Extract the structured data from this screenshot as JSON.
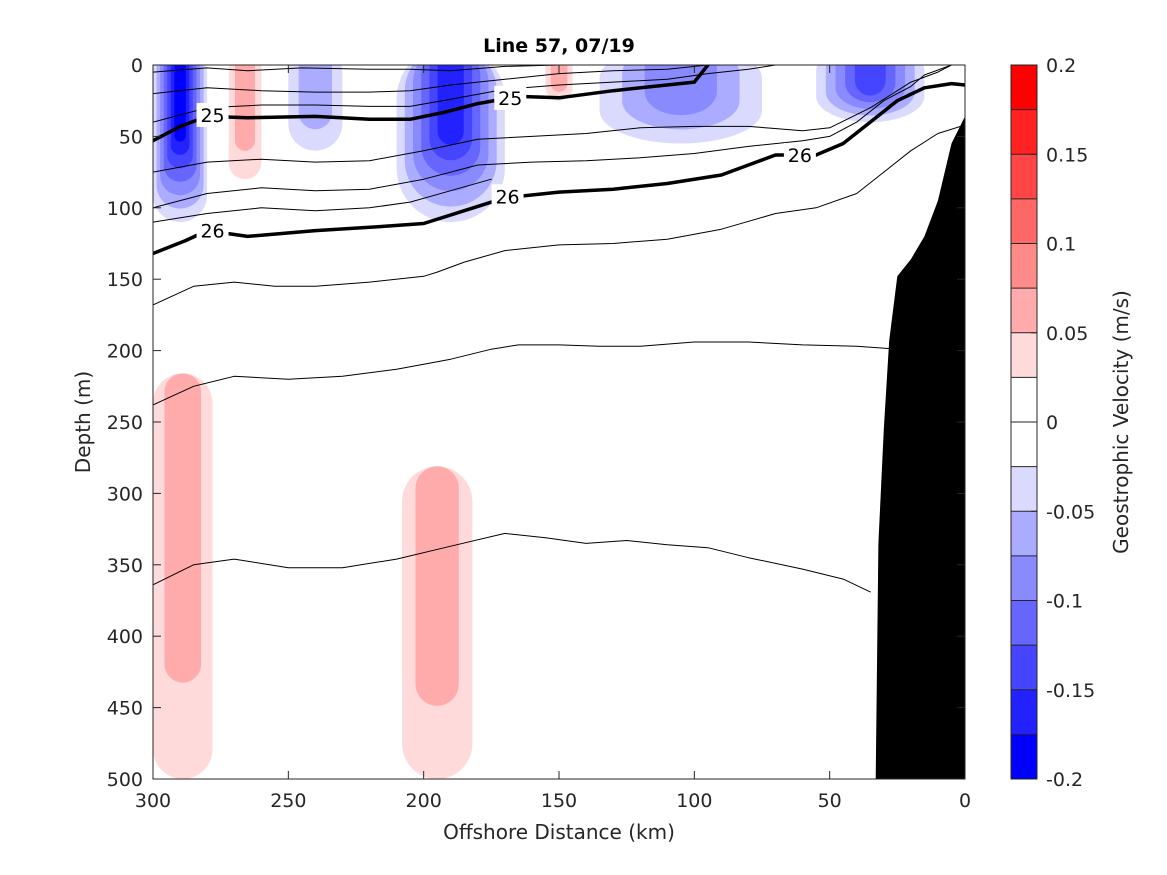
{
  "chart_data": {
    "type": "contour",
    "title": "Line 57, 07/19",
    "xlabel": "Offshore Distance (km)",
    "ylabel": "Depth (m)",
    "xlim": [
      300,
      0
    ],
    "ylim": [
      0,
      500
    ],
    "x_reversed": true,
    "y_reversed": true,
    "xticks": [
      "300",
      "250",
      "200",
      "150",
      "100",
      "50",
      "0"
    ],
    "yticks": [
      "0",
      "50",
      "100",
      "150",
      "200",
      "250",
      "300",
      "350",
      "400",
      "450",
      "500"
    ],
    "colorbar": {
      "label": "Geostrophic Velocity (m/s)",
      "range": [
        -0.2,
        0.2
      ],
      "ticks": [
        "0.2",
        "0.15",
        "0.1",
        "0.05",
        "0",
        "-0.05",
        "-0.1",
        "-0.15",
        "-0.2"
      ],
      "tick_values": [
        0.2,
        0.15,
        0.1,
        0.05,
        0,
        -0.05,
        -0.1,
        -0.15,
        -0.2
      ],
      "levels": 16,
      "colors_top_to_bottom": [
        "#ff0000",
        "#ff2222",
        "#ff4545",
        "#ff6666",
        "#ff8a8a",
        "#ffabab",
        "#ffdada",
        "#ffffff",
        "#ffffff",
        "#dadaff",
        "#ababff",
        "#8a8aff",
        "#6666ff",
        "#4545ff",
        "#2222ff",
        "#0000ff"
      ]
    },
    "velocity_regions": [
      {
        "name": "nearshore-surface-negative",
        "x_range": [
          300,
          280
        ],
        "depth_range": [
          0,
          110
        ],
        "peak": -0.19
      },
      {
        "name": "surface-positive-265",
        "x_range": [
          272,
          260
        ],
        "depth_range": [
          0,
          80
        ],
        "peak": 0.05
      },
      {
        "name": "negative-240",
        "x_range": [
          250,
          230
        ],
        "depth_range": [
          0,
          60
        ],
        "peak": -0.05
      },
      {
        "name": "negative-195",
        "x_range": [
          210,
          170
        ],
        "depth_range": [
          0,
          110
        ],
        "peak": -0.16
      },
      {
        "name": "surface-positive-150",
        "x_range": [
          155,
          145
        ],
        "depth_range": [
          0,
          25
        ],
        "peak": 0.05
      },
      {
        "name": "negative-120",
        "x_range": [
          135,
          75
        ],
        "depth_range": [
          0,
          55
        ],
        "peak": -0.08
      },
      {
        "name": "negative-40",
        "x_range": [
          55,
          15
        ],
        "depth_range": [
          0,
          40
        ],
        "peak": -0.14
      },
      {
        "name": "deep-positive-300",
        "x_range": [
          300,
          278
        ],
        "depth_range": [
          230,
          500
        ],
        "peak": 0.07
      },
      {
        "name": "deep-positive-195",
        "x_range": [
          208,
          182
        ],
        "depth_range": [
          295,
          500
        ],
        "peak": 0.05
      }
    ],
    "isopycnal_labels": [
      {
        "text": "25",
        "x": 278,
        "depth": 35
      },
      {
        "text": "25",
        "x": 168,
        "depth": 23
      },
      {
        "text": "26",
        "x": 278,
        "depth": 116
      },
      {
        "text": "26",
        "x": 169,
        "depth": 92
      },
      {
        "text": "26",
        "x": 61,
        "depth": 63
      }
    ],
    "isopycnals": [
      {
        "bold": true,
        "label": "25",
        "points": [
          [
            300,
            53
          ],
          [
            290,
            43
          ],
          [
            280,
            36
          ],
          [
            265,
            37
          ],
          [
            240,
            36
          ],
          [
            220,
            38
          ],
          [
            205,
            38
          ],
          [
            192,
            33
          ],
          [
            180,
            27
          ],
          [
            165,
            22
          ],
          [
            150,
            23
          ],
          [
            130,
            18
          ],
          [
            115,
            15
          ],
          [
            100,
            12
          ],
          [
            95,
            0
          ]
        ]
      },
      {
        "bold": true,
        "label": "26",
        "points": [
          [
            300,
            132
          ],
          [
            288,
            123
          ],
          [
            280,
            116
          ],
          [
            265,
            120
          ],
          [
            240,
            116
          ],
          [
            215,
            113
          ],
          [
            200,
            111
          ],
          [
            185,
            102
          ],
          [
            170,
            93
          ],
          [
            150,
            89
          ],
          [
            130,
            87
          ],
          [
            110,
            83
          ],
          [
            90,
            77
          ],
          [
            70,
            63
          ],
          [
            55,
            63
          ],
          [
            45,
            55
          ],
          [
            35,
            40
          ],
          [
            25,
            25
          ],
          [
            15,
            16
          ],
          [
            5,
            13
          ],
          [
            0,
            14
          ]
        ]
      },
      {
        "bold": false,
        "points": [
          [
            300,
            5
          ],
          [
            280,
            2
          ],
          [
            265,
            4
          ],
          [
            245,
            2
          ],
          [
            220,
            3
          ],
          [
            205,
            3
          ],
          [
            190,
            4
          ],
          [
            170,
            1
          ],
          [
            150,
            0
          ]
        ]
      },
      {
        "bold": false,
        "points": [
          [
            300,
            20
          ],
          [
            280,
            16
          ],
          [
            260,
            18
          ],
          [
            240,
            19
          ],
          [
            220,
            19
          ],
          [
            205,
            18
          ],
          [
            190,
            14
          ],
          [
            170,
            10
          ],
          [
            150,
            6
          ],
          [
            130,
            4
          ],
          [
            110,
            3
          ],
          [
            95,
            0
          ]
        ]
      },
      {
        "bold": false,
        "points": [
          [
            300,
            40
          ],
          [
            280,
            30
          ],
          [
            260,
            28
          ],
          [
            240,
            28
          ],
          [
            220,
            29
          ],
          [
            205,
            29
          ],
          [
            190,
            24
          ],
          [
            170,
            17
          ],
          [
            150,
            14
          ],
          [
            130,
            12
          ],
          [
            110,
            10
          ],
          [
            95,
            6
          ],
          [
            80,
            3
          ],
          [
            70,
            0
          ]
        ]
      },
      {
        "bold": false,
        "points": [
          [
            300,
            75
          ],
          [
            280,
            68
          ],
          [
            260,
            66
          ],
          [
            240,
            68
          ],
          [
            220,
            67
          ],
          [
            200,
            60
          ],
          [
            180,
            52
          ],
          [
            160,
            50
          ],
          [
            140,
            48
          ],
          [
            120,
            44
          ],
          [
            100,
            43
          ],
          [
            80,
            43
          ],
          [
            60,
            46
          ],
          [
            50,
            44
          ],
          [
            35,
            30
          ],
          [
            20,
            12
          ],
          [
            10,
            5
          ],
          [
            5,
            0
          ]
        ]
      },
      {
        "bold": false,
        "points": [
          [
            300,
            100
          ],
          [
            280,
            90
          ],
          [
            260,
            86
          ],
          [
            240,
            88
          ],
          [
            220,
            87
          ],
          [
            200,
            80
          ],
          [
            180,
            70
          ],
          [
            160,
            68
          ],
          [
            140,
            67
          ],
          [
            120,
            65
          ],
          [
            100,
            62
          ],
          [
            80,
            57
          ],
          [
            60,
            53
          ],
          [
            50,
            50
          ],
          [
            40,
            40
          ],
          [
            30,
            25
          ],
          [
            20,
            15
          ],
          [
            15,
            7
          ],
          [
            5,
            0
          ]
        ]
      },
      {
        "bold": false,
        "points": [
          [
            300,
            110
          ],
          [
            280,
            104
          ],
          [
            260,
            100
          ],
          [
            240,
            102
          ],
          [
            220,
            100
          ],
          [
            205,
            96
          ],
          [
            190,
            88
          ],
          [
            175,
            80
          ]
        ]
      },
      {
        "bold": false,
        "points": [
          [
            300,
            168
          ],
          [
            285,
            155
          ],
          [
            270,
            152
          ],
          [
            255,
            155
          ],
          [
            240,
            155
          ],
          [
            220,
            152
          ],
          [
            200,
            148
          ],
          [
            195,
            145
          ],
          [
            185,
            138
          ],
          [
            170,
            130
          ],
          [
            150,
            126
          ],
          [
            130,
            125
          ],
          [
            110,
            122
          ],
          [
            90,
            115
          ],
          [
            70,
            104
          ],
          [
            55,
            100
          ],
          [
            40,
            90
          ],
          [
            30,
            75
          ],
          [
            20,
            60
          ],
          [
            10,
            48
          ],
          [
            0,
            42
          ]
        ]
      },
      {
        "bold": false,
        "points": [
          [
            300,
            238
          ],
          [
            285,
            225
          ],
          [
            270,
            218
          ],
          [
            250,
            220
          ],
          [
            230,
            218
          ],
          [
            210,
            213
          ],
          [
            190,
            206
          ],
          [
            175,
            199
          ],
          [
            165,
            196
          ],
          [
            150,
            196
          ],
          [
            135,
            197
          ],
          [
            120,
            197
          ],
          [
            100,
            194
          ],
          [
            80,
            194
          ],
          [
            60,
            196
          ],
          [
            40,
            197
          ],
          [
            25,
            199
          ]
        ]
      },
      {
        "bold": false,
        "points": [
          [
            300,
            364
          ],
          [
            285,
            350
          ],
          [
            270,
            346
          ],
          [
            250,
            352
          ],
          [
            230,
            352
          ],
          [
            210,
            346
          ],
          [
            190,
            337
          ],
          [
            170,
            328
          ],
          [
            155,
            331
          ],
          [
            140,
            335
          ],
          [
            125,
            333
          ],
          [
            110,
            336
          ],
          [
            95,
            338
          ],
          [
            80,
            345
          ],
          [
            60,
            353
          ],
          [
            45,
            360
          ],
          [
            35,
            369
          ]
        ]
      }
    ],
    "bathymetry": {
      "fill_color": "#000000",
      "points": [
        [
          0,
          36
        ],
        [
          5,
          55
        ],
        [
          10,
          95
        ],
        [
          15,
          120
        ],
        [
          20,
          136
        ],
        [
          25,
          148
        ],
        [
          28,
          193
        ],
        [
          30,
          255
        ],
        [
          32,
          335
        ],
        [
          33,
          500
        ],
        [
          0,
          500
        ]
      ]
    }
  }
}
